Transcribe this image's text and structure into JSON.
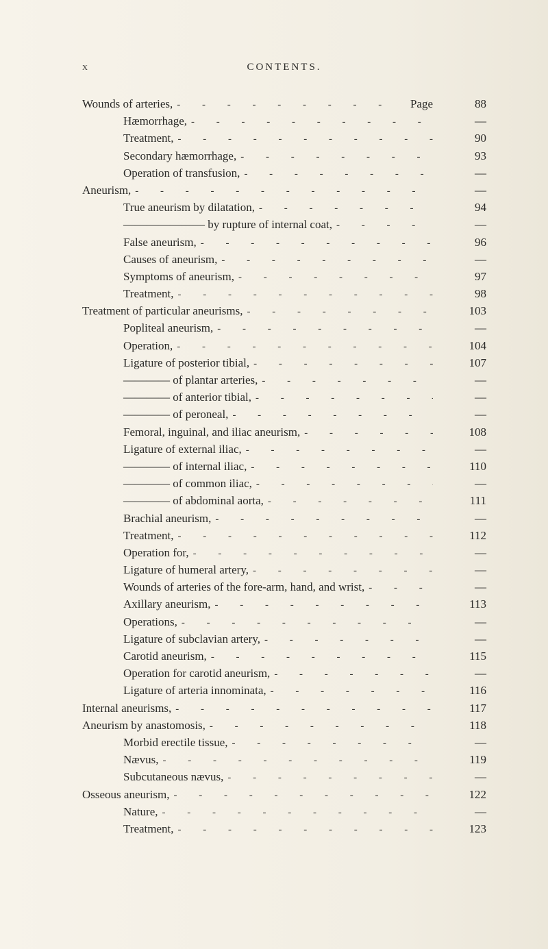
{
  "runningHead": {
    "folio": "x",
    "title": "CONTENTS."
  },
  "pageLabel": "Page",
  "dash": "—",
  "leaderText": "-  -  -  -  -  -  -  -  -  -  -  -  -  -  -",
  "entries": [
    {
      "indent": 0,
      "text": "Wounds of arteries,",
      "page": "88",
      "showPageLabel": true
    },
    {
      "indent": 1,
      "text": "Hæmorrhage,",
      "page": "—"
    },
    {
      "indent": 1,
      "text": "Treatment,",
      "page": "90"
    },
    {
      "indent": 1,
      "text": "Secondary hæmorrhage,",
      "page": "93"
    },
    {
      "indent": 1,
      "text": "Operation of transfusion,",
      "page": "—"
    },
    {
      "indent": 0,
      "text": "Aneurism,",
      "page": "—"
    },
    {
      "indent": 1,
      "text": "True aneurism by dilatation,",
      "page": "94"
    },
    {
      "indent": 1,
      "text": "——————— by rupture of internal coat,",
      "page": "—"
    },
    {
      "indent": 1,
      "text": "False aneurism,",
      "page": "96"
    },
    {
      "indent": 1,
      "text": "Causes of aneurism,",
      "page": "—"
    },
    {
      "indent": 1,
      "text": "Symptoms of aneurism,",
      "page": "97"
    },
    {
      "indent": 1,
      "text": "Treatment,",
      "page": "98"
    },
    {
      "indent": 0,
      "text": "Treatment of particular aneurisms,",
      "page": "103"
    },
    {
      "indent": 1,
      "text": "Popliteal aneurism,",
      "page": "—"
    },
    {
      "indent": 1,
      "text": "Operation,",
      "page": "104"
    },
    {
      "indent": 1,
      "text": "Ligature of posterior tibial,",
      "page": "107"
    },
    {
      "indent": 1,
      "text": "———— of plantar arteries,",
      "page": "—"
    },
    {
      "indent": 1,
      "text": "———— of anterior tibial,",
      "page": "—"
    },
    {
      "indent": 1,
      "text": "———— of peroneal,",
      "page": "—"
    },
    {
      "indent": 1,
      "text": "Femoral, inguinal, and iliac aneurism,",
      "page": "108"
    },
    {
      "indent": 1,
      "text": "Ligature of external iliac,",
      "page": "—"
    },
    {
      "indent": 1,
      "text": "———— of internal iliac,",
      "page": "110"
    },
    {
      "indent": 1,
      "text": "———— of common iliac,",
      "page": "—"
    },
    {
      "indent": 1,
      "text": "———— of abdominal aorta,",
      "page": "111"
    },
    {
      "indent": 1,
      "text": "Brachial aneurism,",
      "page": "—"
    },
    {
      "indent": 1,
      "text": "Treatment,",
      "page": "112"
    },
    {
      "indent": 1,
      "text": "Operation for,",
      "page": "—"
    },
    {
      "indent": 1,
      "text": "Ligature of humeral artery,",
      "page": "—"
    },
    {
      "indent": 1,
      "text": "Wounds of arteries of the fore-arm, hand, and wrist,",
      "page": "—"
    },
    {
      "indent": 1,
      "text": "Axillary aneurism,",
      "page": "113"
    },
    {
      "indent": 1,
      "text": "Operations,",
      "page": "—"
    },
    {
      "indent": 1,
      "text": "Ligature of subclavian artery,",
      "page": "—"
    },
    {
      "indent": 1,
      "text": "Carotid aneurism,",
      "page": "115"
    },
    {
      "indent": 1,
      "text": "Operation for carotid aneurism,",
      "page": "—"
    },
    {
      "indent": 1,
      "text": "Ligature of arteria innominata,",
      "page": "116"
    },
    {
      "indent": 0,
      "text": "Internal aneurisms,",
      "page": "117"
    },
    {
      "indent": 0,
      "text": "Aneurism by anastomosis,",
      "page": "118"
    },
    {
      "indent": 1,
      "text": "Morbid erectile tissue,",
      "page": "—"
    },
    {
      "indent": 1,
      "text": "Nævus,",
      "page": "119"
    },
    {
      "indent": 1,
      "text": "Subcutaneous nævus,",
      "page": "—"
    },
    {
      "indent": 0,
      "text": "Osseous aneurism,",
      "page": "122"
    },
    {
      "indent": 1,
      "text": "Nature,",
      "page": "—"
    },
    {
      "indent": 1,
      "text": "Treatment,",
      "page": "123"
    }
  ]
}
